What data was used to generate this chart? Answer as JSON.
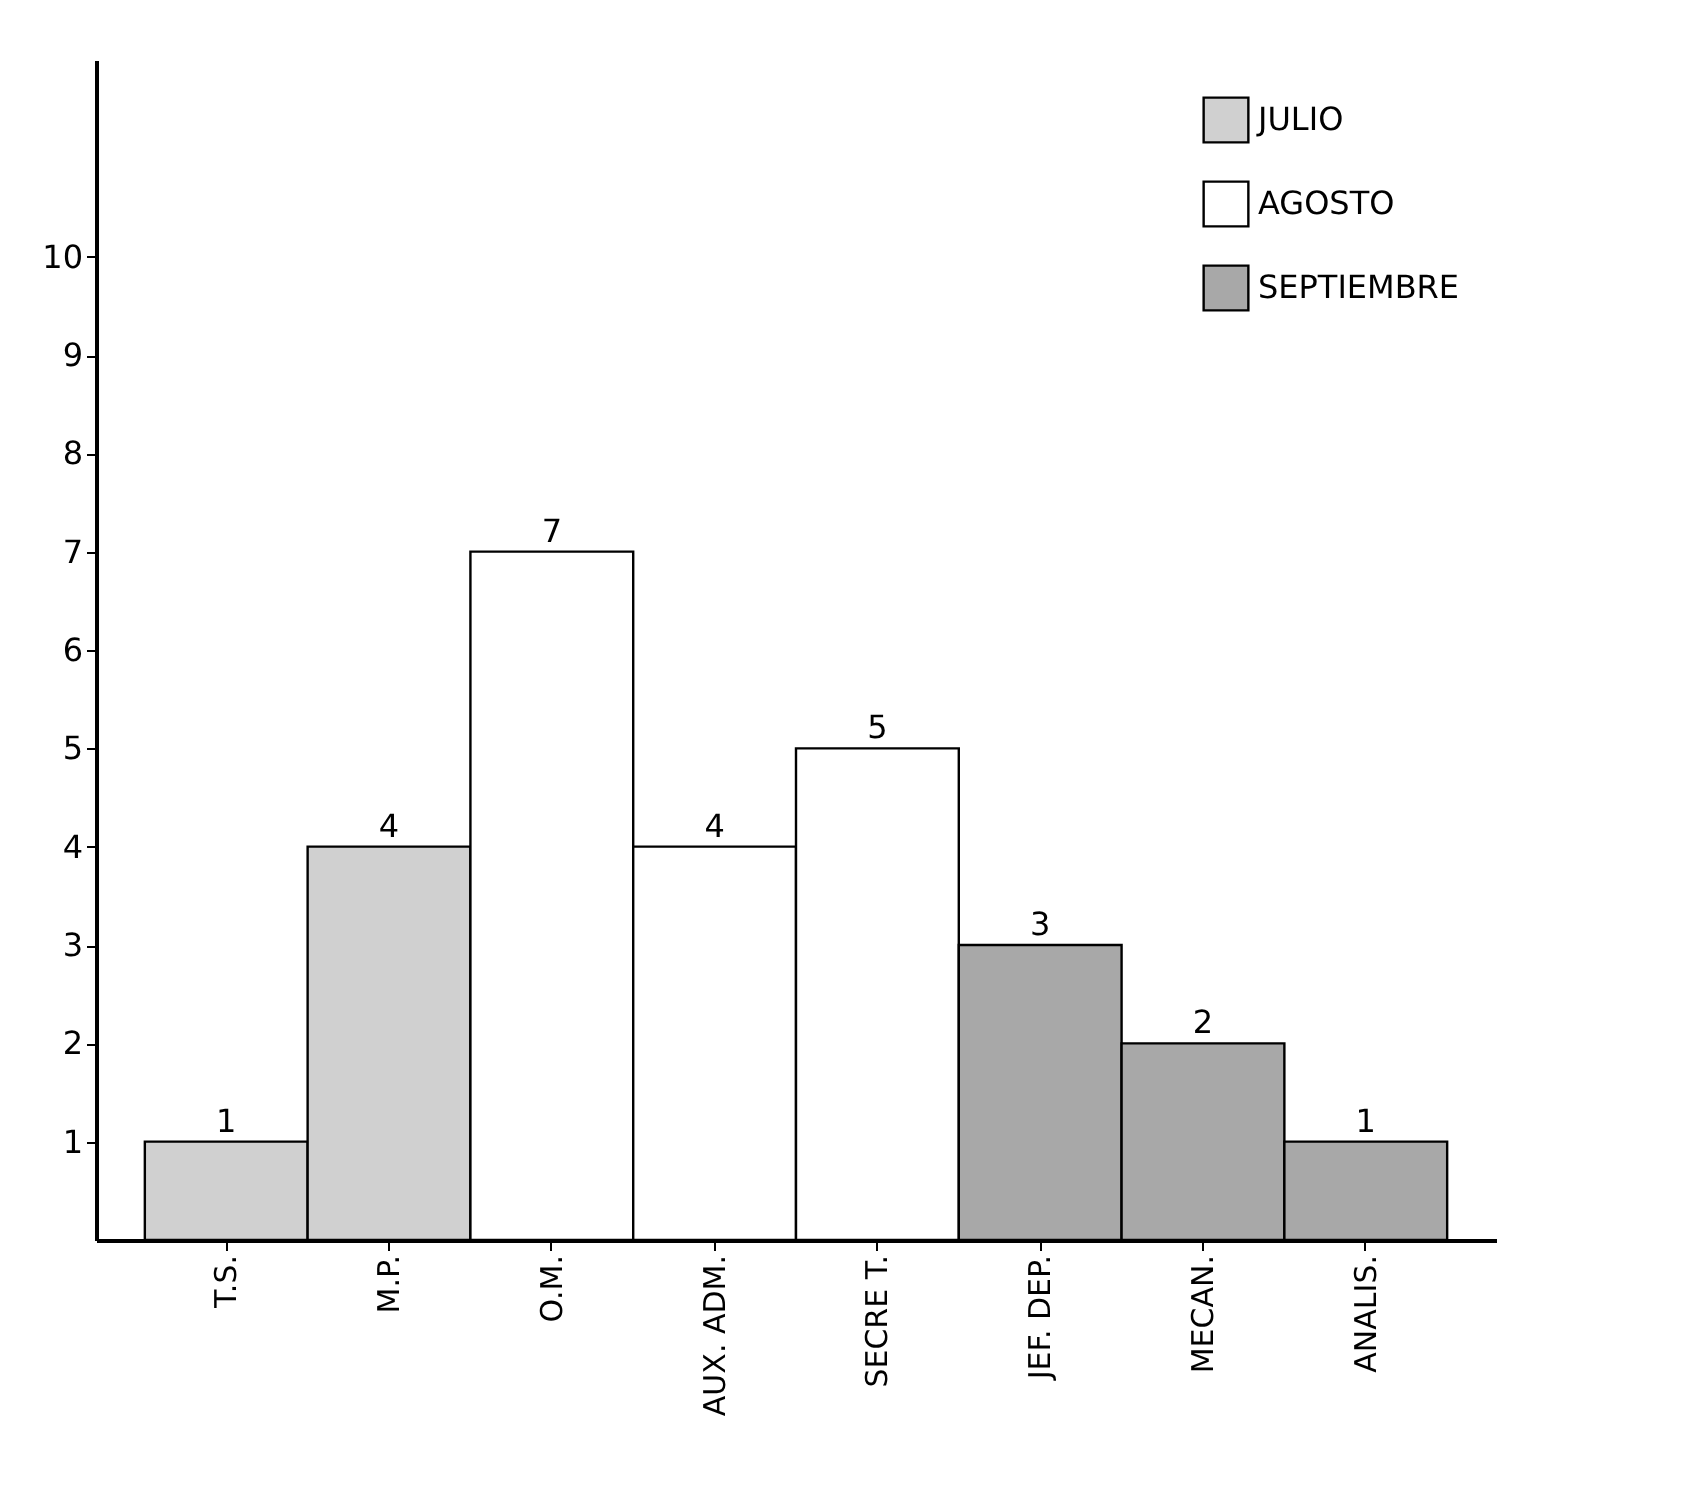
{
  "chart_data": {
    "type": "bar",
    "categories": [
      "T.S.",
      "M.P.",
      "O.M.",
      "AUX. ADM.",
      "SECRE T.",
      "JEF. DEP.",
      "MECAN.",
      "ANALIS."
    ],
    "series": [
      {
        "name": "JULIO",
        "color": "#d0d0d0",
        "values": [
          1,
          4,
          null,
          null,
          null,
          null,
          null,
          null
        ]
      },
      {
        "name": "AGOSTO",
        "color": "#ffffff",
        "values": [
          null,
          null,
          7,
          4,
          5,
          null,
          null,
          null
        ]
      },
      {
        "name": "SEPTIEMBRE",
        "color": "#a8a8a8",
        "values": [
          null,
          null,
          null,
          null,
          null,
          3,
          2,
          1
        ]
      }
    ],
    "ylim": [
      0,
      12
    ],
    "yticks": [
      1,
      2,
      3,
      4,
      5,
      6,
      7,
      8,
      9,
      10
    ],
    "grid": false,
    "legend": "top right",
    "data_labels": true
  }
}
